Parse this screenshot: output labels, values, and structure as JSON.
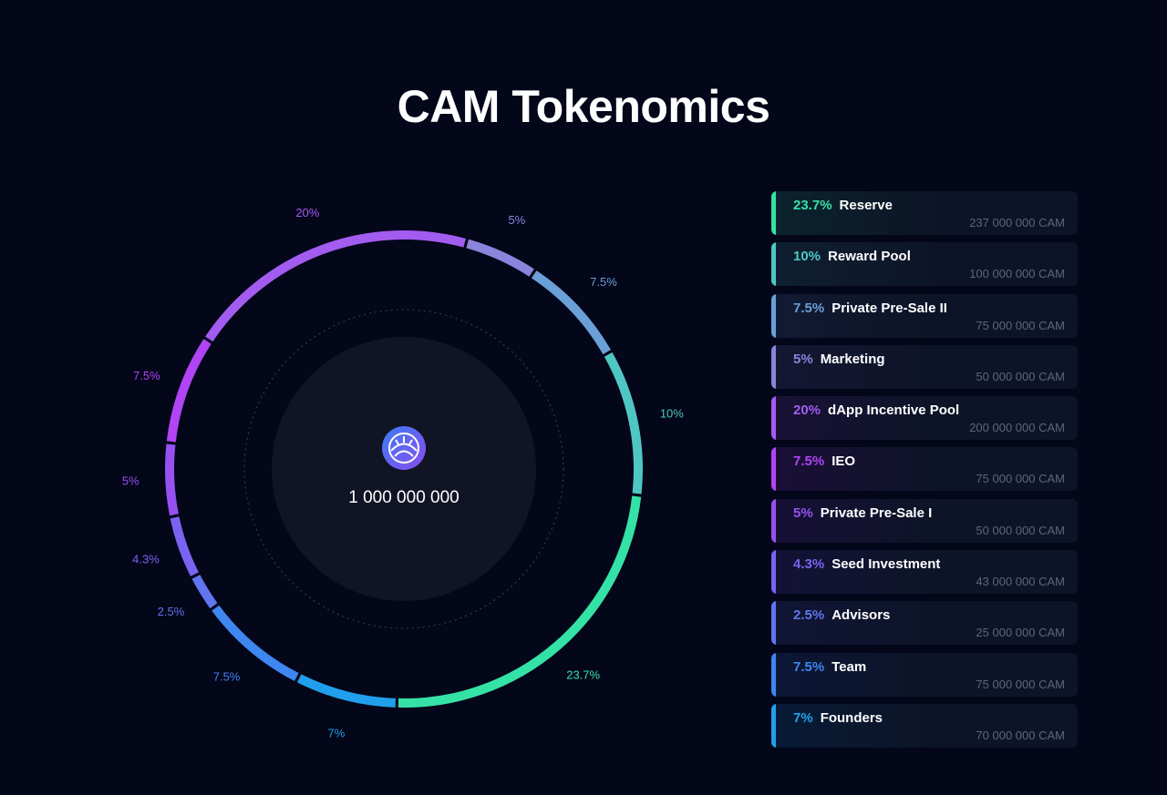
{
  "title": "CAM Tokenomics",
  "total_supply": "1 000 000 000",
  "logo": {
    "icon": "cam-logo-icon",
    "gradient": [
      "#3b7cf5",
      "#8a4cf0"
    ]
  },
  "chart_data": {
    "type": "pie",
    "style": "donut-ring",
    "unit": "%",
    "center_label": "1 000 000 000",
    "slices": [
      {
        "name": "Reserve",
        "value": 23.7,
        "label": "23.7%",
        "amount": "237 000 000 CAM",
        "color": "#35e2a6"
      },
      {
        "name": "Reward Pool",
        "value": 10,
        "label": "10%",
        "amount": "100 000 000 CAM",
        "color": "#4ec7c3"
      },
      {
        "name": "Private Pre-Sale II",
        "value": 7.5,
        "label": "7.5%",
        "amount": "75 000 000 CAM",
        "color": "#6a9fd8"
      },
      {
        "name": "Marketing",
        "value": 5,
        "label": "5%",
        "amount": "50 000 000 CAM",
        "color": "#8b84dc"
      },
      {
        "name": "dApp Incentive Pool",
        "value": 20,
        "label": "20%",
        "amount": "200 000 000 CAM",
        "color": "#a35cf0"
      },
      {
        "name": "IEO",
        "value": 7.5,
        "label": "7.5%",
        "amount": "75 000 000 CAM",
        "color": "#b144f5"
      },
      {
        "name": "Private Pre-Sale I",
        "value": 5,
        "label": "5%",
        "amount": "50 000 000 CAM",
        "color": "#9552f0"
      },
      {
        "name": "Seed Investment",
        "value": 4.3,
        "label": "4.3%",
        "amount": "43 000 000 CAM",
        "color": "#7a63f0"
      },
      {
        "name": "Advisors",
        "value": 2.5,
        "label": "2.5%",
        "amount": "25 000 000 CAM",
        "color": "#6175ee"
      },
      {
        "name": "Team",
        "value": 7.5,
        "label": "7.5%",
        "amount": "75 000 000 CAM",
        "color": "#3e86f0"
      },
      {
        "name": "Founders",
        "value": 7,
        "label": "7%",
        "amount": "70 000 000 CAM",
        "color": "#20a0ec"
      }
    ]
  }
}
